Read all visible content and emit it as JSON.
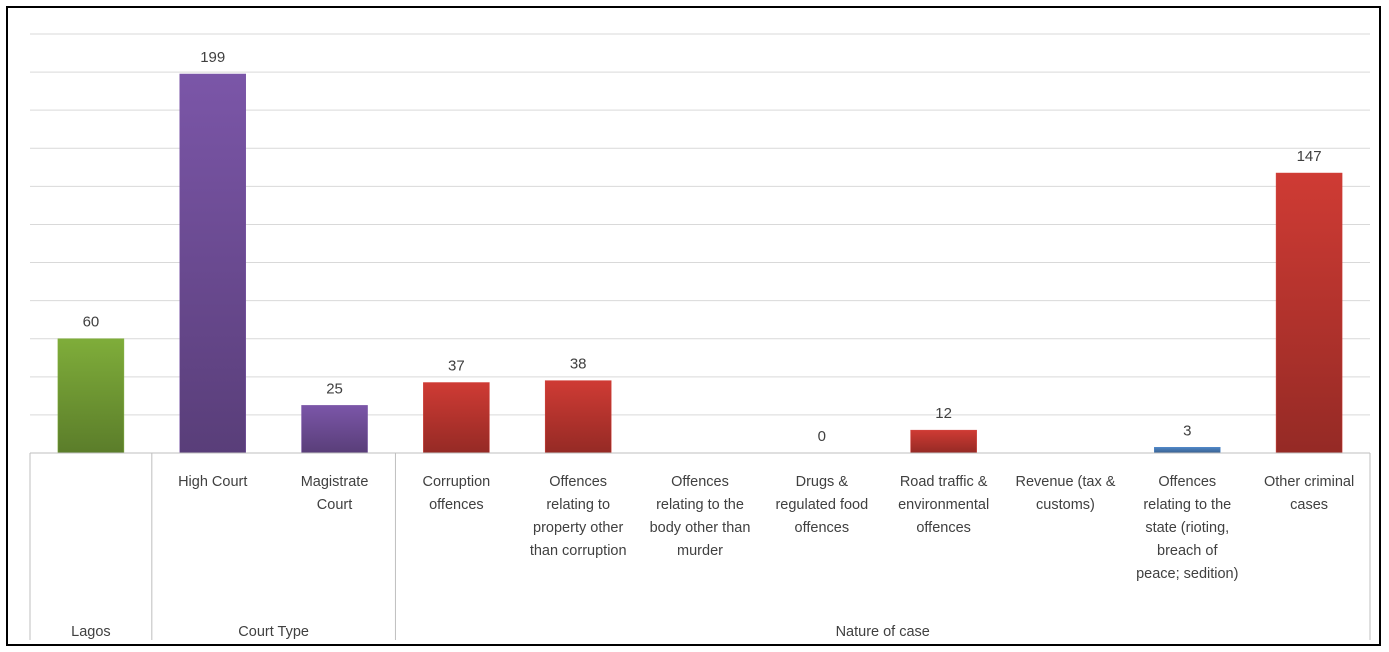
{
  "chart_data": {
    "type": "bar",
    "title": "",
    "categories": [
      "Lagos",
      "High Court",
      "Magistrate Court",
      "Corruption offences",
      "Offences relating to property other than corruption",
      "Offences relating to the body other than murder",
      "Drugs & regulated food offences",
      "Road traffic & environmental offences",
      "Revenue (tax & customs)",
      "Offences relating to the state (rioting, breach of peace; sedition)",
      "Other criminal cases"
    ],
    "category_lines": [
      [
        ""
      ],
      [
        "High Court"
      ],
      [
        "Magistrate",
        "Court"
      ],
      [
        "Corruption",
        "offences"
      ],
      [
        "Offences",
        "relating to",
        "property other",
        "than corruption"
      ],
      [
        "Offences",
        "relating to the",
        "body other than",
        "murder"
      ],
      [
        "Drugs &",
        "regulated food",
        "offences"
      ],
      [
        "Road traffic &",
        "environmental",
        "offences"
      ],
      [
        "Revenue (tax &",
        "customs)"
      ],
      [
        "Offences",
        "relating to the",
        "state (rioting,",
        "breach of",
        "peace; sedition)"
      ],
      [
        "Other criminal",
        "cases"
      ]
    ],
    "values": [
      60,
      199,
      25,
      37,
      38,
      null,
      0,
      12,
      null,
      3,
      147
    ],
    "value_labels": [
      "60",
      "199",
      "25",
      "37",
      "38",
      "",
      "0",
      "12",
      "",
      "3",
      "147"
    ],
    "group_labels": [
      "Lagos",
      "Court Type",
      "Nature of case"
    ],
    "groups": [
      [
        0,
        0
      ],
      [
        1,
        2
      ],
      [
        3,
        10
      ]
    ],
    "colors": [
      "#7fad3a",
      "#7b56a8",
      "#7b56a8",
      "#cf3b34",
      "#cf3b34",
      "#cf3b34",
      "#cf3b34",
      "#cf3b34",
      "#cf3b34",
      "#4f86c6",
      "#cf3b34"
    ],
    "ylim": [
      0,
      220
    ],
    "grid": true,
    "ytick_step": 20
  }
}
